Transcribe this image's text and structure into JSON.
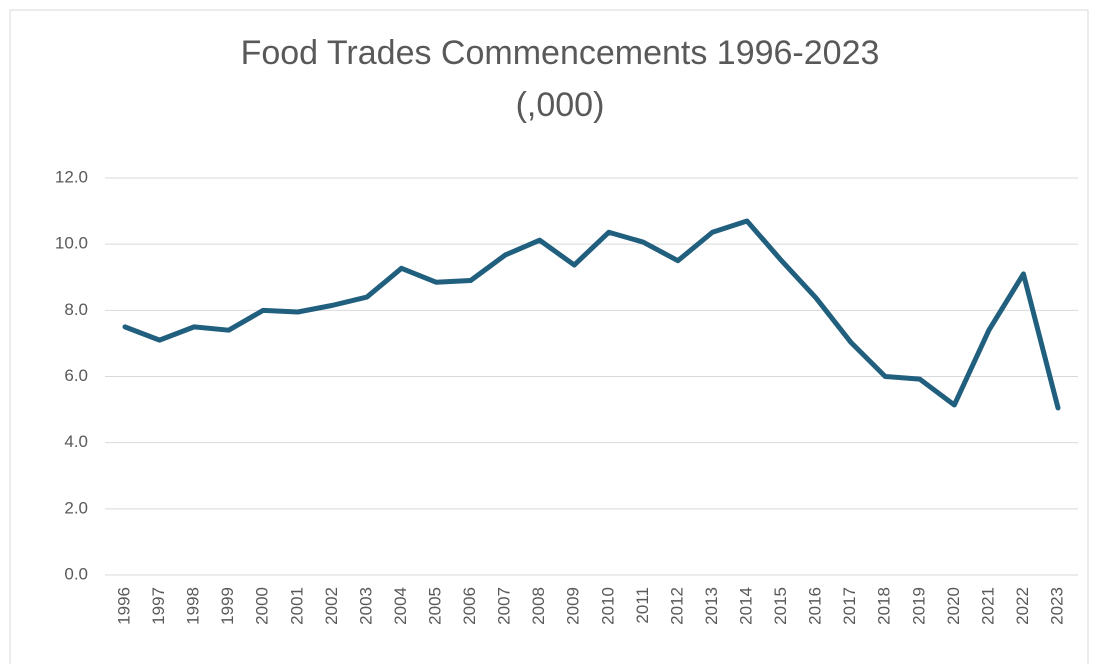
{
  "chart_data": {
    "type": "line",
    "title": [
      "Food Trades Commencements 1996-2023",
      "(,000)"
    ],
    "categories": [
      "1996",
      "1997",
      "1998",
      "1999",
      "2000",
      "2001",
      "2002",
      "2003",
      "2004",
      "2005",
      "2006",
      "2007",
      "2008",
      "2009",
      "2010",
      "2011",
      "2012",
      "2013",
      "2014",
      "2015",
      "2016",
      "2017",
      "2018",
      "2019",
      "2020",
      "2021",
      "2022",
      "2023"
    ],
    "series": [
      {
        "color": "#215f7e",
        "values": [
          7.5,
          7.1,
          7.5,
          7.4,
          8.0,
          7.95,
          8.15,
          8.4,
          9.27,
          8.85,
          8.9,
          9.67,
          10.12,
          9.37,
          10.36,
          10.06,
          9.5,
          10.36,
          10.7,
          9.5,
          8.37,
          7.04,
          6.0,
          5.92,
          5.14,
          7.4,
          9.1,
          5.05
        ]
      }
    ],
    "ylim": [
      0,
      12
    ],
    "yticks": [
      {
        "value": 0,
        "label": "0.0"
      },
      {
        "value": 2,
        "label": "2.0"
      },
      {
        "value": 4,
        "label": "4.0"
      },
      {
        "value": 6,
        "label": "6.0"
      },
      {
        "value": 8,
        "label": "8.0"
      },
      {
        "value": 10,
        "label": "10.0"
      },
      {
        "value": 12,
        "label": "12.0"
      }
    ],
    "grid": true
  }
}
